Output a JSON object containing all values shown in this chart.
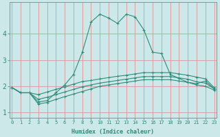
{
  "xlabel": "Humidex (Indice chaleur)",
  "x": [
    0,
    1,
    2,
    3,
    4,
    5,
    6,
    7,
    8,
    9,
    10,
    11,
    12,
    13,
    14,
    15,
    16,
    17,
    18,
    19,
    20,
    21,
    22,
    23
  ],
  "line1": [
    1.95,
    1.75,
    1.75,
    1.4,
    1.45,
    1.75,
    2.05,
    2.45,
    3.3,
    4.45,
    4.75,
    4.6,
    4.4,
    4.75,
    4.65,
    4.15,
    3.3,
    3.25,
    2.45,
    2.3,
    2.15,
    2.1,
    2.2,
    1.9
  ],
  "line2": [
    1.95,
    1.75,
    1.75,
    1.68,
    1.78,
    1.88,
    1.98,
    2.08,
    2.18,
    2.22,
    2.28,
    2.33,
    2.38,
    2.42,
    2.47,
    2.52,
    2.52,
    2.52,
    2.52,
    2.47,
    2.42,
    2.35,
    2.28,
    1.95
  ],
  "line3": [
    1.95,
    1.75,
    1.75,
    1.5,
    1.58,
    1.68,
    1.78,
    1.88,
    1.98,
    2.05,
    2.12,
    2.17,
    2.22,
    2.27,
    2.32,
    2.37,
    2.37,
    2.37,
    2.37,
    2.32,
    2.27,
    2.17,
    2.12,
    1.9
  ],
  "line4": [
    1.95,
    1.75,
    1.75,
    1.32,
    1.38,
    1.5,
    1.6,
    1.7,
    1.8,
    1.9,
    2.0,
    2.05,
    2.1,
    2.15,
    2.2,
    2.25,
    2.25,
    2.25,
    2.25,
    2.2,
    2.15,
    2.05,
    2.0,
    1.85
  ],
  "line_color": "#2e8b7a",
  "bg_color": "#cce8e8",
  "plot_bg": "#cce8e8",
  "grid_color": "#d4a0a0",
  "ylim": [
    0.8,
    5.2
  ],
  "yticks": [
    1,
    2,
    3,
    4
  ],
  "xticks": [
    0,
    1,
    2,
    3,
    4,
    5,
    6,
    7,
    8,
    9,
    10,
    11,
    12,
    13,
    14,
    15,
    16,
    17,
    18,
    19,
    20,
    21,
    22,
    23
  ]
}
